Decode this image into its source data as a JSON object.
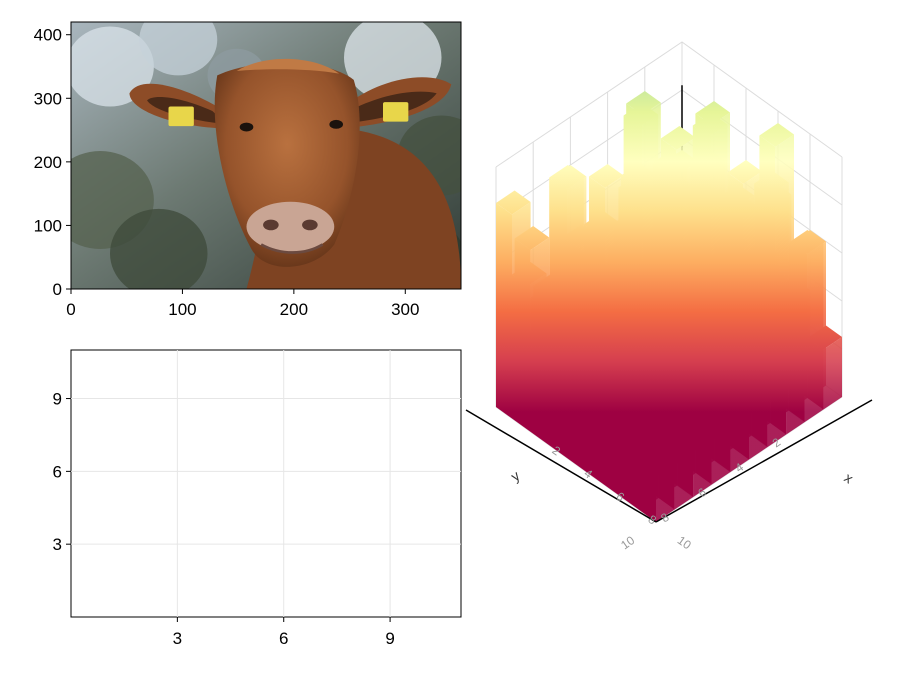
{
  "chart_data": [
    {
      "type": "image",
      "subject": "cow",
      "x_ticks": [
        "0",
        "100",
        "200",
        "300"
      ],
      "y_ticks": [
        "0",
        "100",
        "200",
        "300",
        "400"
      ],
      "xlim": [
        0,
        350
      ],
      "ylim": [
        0,
        420
      ]
    },
    {
      "type": "heatmap",
      "subject": "cow",
      "grid_cols": 11,
      "grid_rows": 10,
      "x_ticks": [
        "3",
        "6",
        "9"
      ],
      "y_ticks": [
        "3",
        "6",
        "9"
      ],
      "xlim": [
        0,
        11
      ],
      "ylim": [
        0,
        11
      ]
    },
    {
      "type": "bar3d",
      "x_label": "x",
      "y_label": "y",
      "x_ticks": [
        "2",
        "4",
        "6",
        "8",
        "10"
      ],
      "y_ticks": [
        "2",
        "4",
        "6",
        "8",
        "10"
      ],
      "colormap": "Spectral",
      "colors": [
        "#9e0142",
        "#d53e4f",
        "#f46d43",
        "#fdae61",
        "#fee08b",
        "#ffffbf",
        "#e6f598",
        "#abdda4",
        "#66c2a5",
        "#3288bd",
        "#5e4fa2"
      ],
      "grid": true,
      "heights": [
        [
          0.55,
          0.3,
          0.9,
          0.35,
          0.7,
          0.25,
          0.8,
          0.4,
          0.65,
          0.85
        ],
        [
          0.2,
          0.75,
          0.4,
          0.95,
          0.3,
          0.6,
          0.35,
          0.9,
          0.45,
          0.6
        ],
        [
          0.85,
          0.35,
          0.65,
          0.25,
          0.8,
          0.45,
          0.7,
          0.3,
          0.55,
          0.4
        ],
        [
          0.3,
          0.9,
          0.45,
          0.7,
          0.35,
          0.85,
          0.25,
          0.6,
          0.8,
          0.55
        ],
        [
          0.7,
          0.4,
          0.85,
          0.5,
          0.95,
          0.3,
          0.75,
          0.45,
          0.35,
          0.8
        ],
        [
          0.4,
          0.65,
          0.3,
          0.8,
          0.45,
          0.7,
          0.4,
          0.9,
          0.55,
          0.65
        ],
        [
          0.95,
          0.5,
          0.75,
          0.35,
          0.6,
          0.85,
          0.45,
          0.7,
          0.3,
          0.75
        ],
        [
          0.35,
          0.8,
          0.55,
          0.9,
          0.4,
          0.6,
          0.95,
          0.5,
          0.75,
          0.85
        ],
        [
          0.6,
          0.45,
          0.95,
          0.55,
          0.75,
          0.4,
          0.65,
          0.85,
          0.7,
          0.5
        ],
        [
          0.25,
          0.7,
          0.4,
          0.65,
          0.5,
          0.9,
          0.55,
          0.35,
          0.6,
          0.45
        ]
      ]
    }
  ]
}
